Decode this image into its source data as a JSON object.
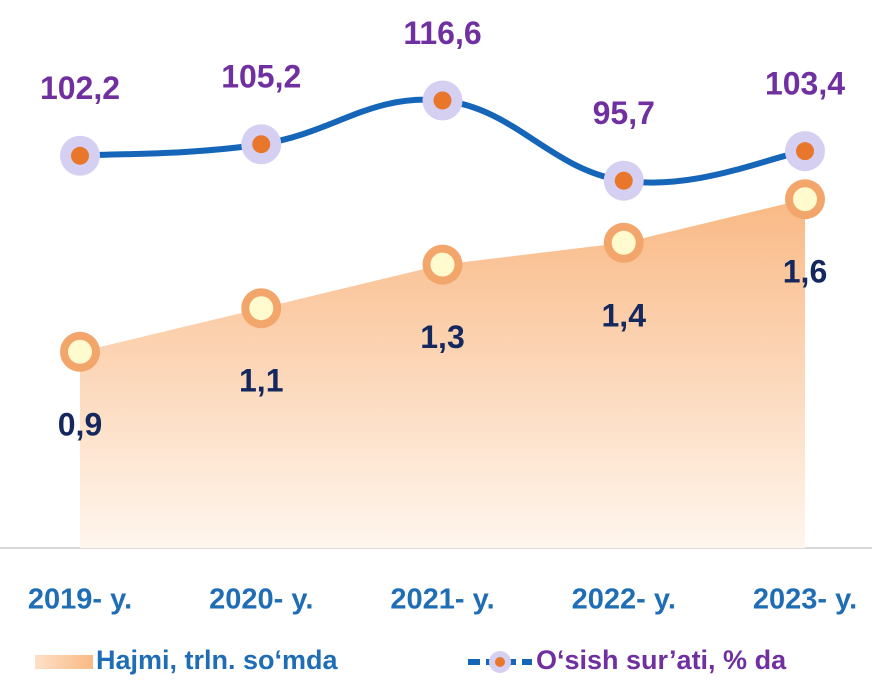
{
  "chart_data": {
    "type": "combo",
    "categories": [
      "2019- y.",
      "2020- y.",
      "2021- y.",
      "2022- y.",
      "2023- y."
    ],
    "ylim": [
      0,
      2.5
    ],
    "y2lim": [
      0,
      142
    ],
    "legend": "bottom",
    "series": [
      {
        "name": "Hajmi, trln. so‘mda",
        "type": "area",
        "color": "#f9b985",
        "label_color": "#14285e",
        "values": [
          0.9,
          1.1,
          1.3,
          1.4,
          1.6
        ],
        "value_labels": [
          "0,9",
          "1,1",
          "1,3",
          "1,4",
          "1,6"
        ]
      },
      {
        "name": "O‘sish sur’ati, % da",
        "type": "line",
        "axis": "y2",
        "color": "#1565b8",
        "label_color": "#7030a0",
        "values": [
          102.2,
          105.2,
          116.6,
          95.7,
          103.4
        ],
        "value_labels": [
          "102,2",
          "105,2",
          "116,6",
          "95,7",
          "103,4"
        ]
      }
    ]
  }
}
